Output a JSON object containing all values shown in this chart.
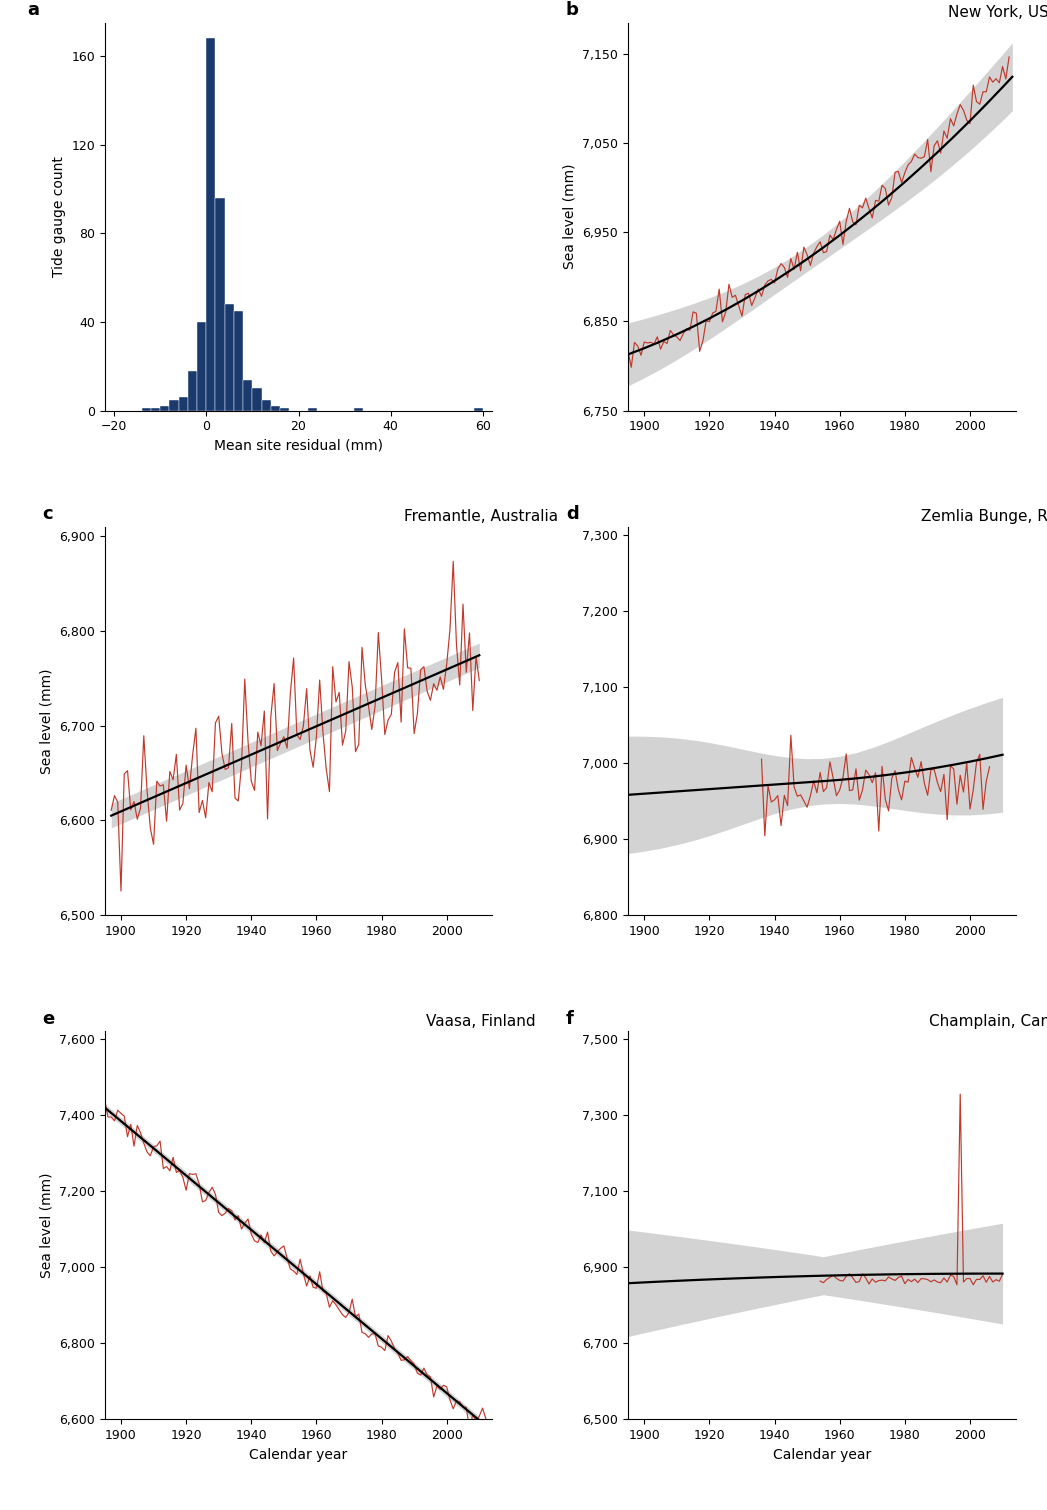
{
  "hist": {
    "bin_centers": [
      -19,
      -17,
      -15,
      -13,
      -11,
      -9,
      -7,
      -5,
      -3,
      -1,
      1,
      3,
      5,
      7,
      9,
      11,
      13,
      15,
      17,
      19,
      21,
      23,
      25,
      27,
      29,
      31,
      33,
      35,
      37,
      39,
      41,
      43,
      45,
      47,
      49,
      51,
      53,
      55,
      57,
      59
    ],
    "counts": [
      0,
      0,
      0,
      1,
      1,
      2,
      5,
      6,
      18,
      40,
      168,
      96,
      48,
      45,
      14,
      10,
      5,
      2,
      1,
      0,
      0,
      1,
      0,
      0,
      0,
      0,
      1,
      0,
      0,
      0,
      0,
      0,
      0,
      0,
      0,
      0,
      0,
      0,
      0,
      1
    ],
    "color": "#1a3a6e",
    "xlabel": "Mean site residual (mm)",
    "ylabel": "Tide gauge count",
    "xlim": [
      -22,
      62
    ],
    "ylim": [
      0,
      175
    ],
    "yticks": [
      0,
      40,
      80,
      120,
      160
    ],
    "xticks": [
      -20,
      0,
      20,
      40,
      60
    ],
    "bin_width": 2
  },
  "panel_label_fontsize": 13,
  "axis_label_fontsize": 10,
  "tick_fontsize": 9,
  "title_fontsize": 11,
  "obs_color": "#c0392b",
  "model_color": "#000000",
  "shade_color": "#b0b0b0",
  "shade_alpha": 0.55
}
